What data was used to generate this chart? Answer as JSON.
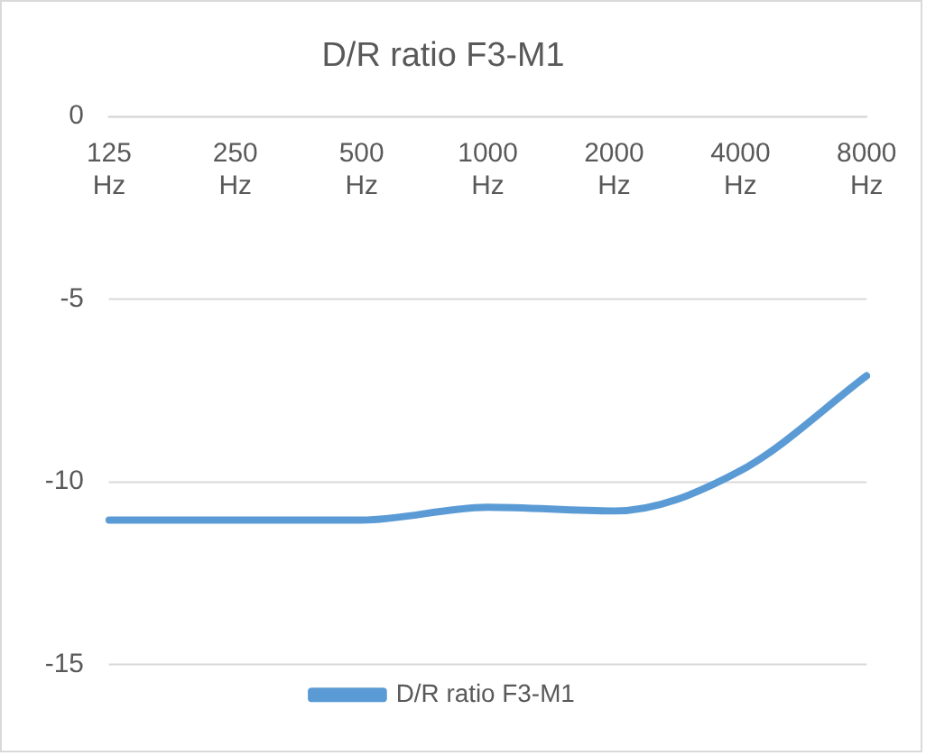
{
  "chart_data": {
    "type": "line",
    "title": "D/R ratio F3-M1",
    "categories": [
      "125 Hz",
      "250 Hz",
      "500 Hz",
      "1000 Hz",
      "2000 Hz",
      "4000 Hz",
      "8000 Hz"
    ],
    "series": [
      {
        "name": "D/R ratio F3-M1",
        "color": "#5b9bd5",
        "values": [
          -11.05,
          -11.05,
          -11.05,
          -10.7,
          -10.8,
          -9.7,
          -7.1
        ]
      }
    ],
    "ylim": [
      -15,
      0
    ],
    "yticks": [
      -15,
      -10,
      -5,
      0
    ],
    "grid": "y",
    "legend": "bottom",
    "marker": "none",
    "line_style": "solid"
  }
}
